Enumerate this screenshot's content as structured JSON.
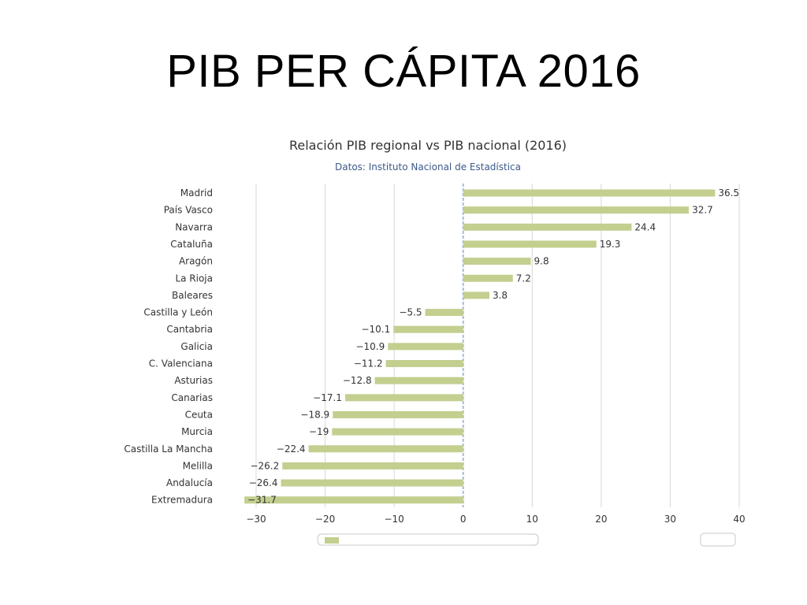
{
  "slide": {
    "title": "PIB PER CÁPITA 2016"
  },
  "colors": {
    "bar": "#c2cf8f",
    "grid": "#d8d8d8",
    "zero_line": "#aabbd9",
    "text": "#333333",
    "subtitle": "#3c5a8a"
  },
  "chart_data": {
    "type": "bar",
    "orientation": "horizontal",
    "title": "Relación PIB regional vs PIB nacional (2016)",
    "subtitle": "Datos: Instituto Nacional de Estadística",
    "categories": [
      "Madrid",
      "País Vasco",
      "Navarra",
      "Cataluña",
      "Aragón",
      "La Rioja",
      "Baleares",
      "Castilla y León",
      "Cantabria",
      "Galicia",
      "C. Valenciana",
      "Asturias",
      "Canarias",
      "Ceuta",
      "Murcia",
      "Castilla La Mancha",
      "Melilla",
      "Andalucía",
      "Extremadura"
    ],
    "values": [
      36.5,
      32.7,
      24.4,
      19.3,
      9.8,
      7.2,
      3.8,
      -5.5,
      -10.1,
      -10.9,
      -11.2,
      -12.8,
      -17.1,
      -18.9,
      -19,
      -22.4,
      -26.2,
      -26.4,
      -31.7
    ],
    "data_labels": [
      "36.5",
      "32.7",
      "24.4",
      "19.3",
      "9.8",
      "7.2",
      "3.8",
      "−5.5",
      "−10.1",
      "−10.9",
      "−11.2",
      "−12.8",
      "−17.1",
      "−18.9",
      "−19",
      "−22.4",
      "−26.2",
      "−26.4",
      "−31.7"
    ],
    "xlim": [
      -30,
      40
    ],
    "xticks": [
      -30,
      -20,
      -10,
      0,
      10,
      20,
      30,
      40
    ],
    "xtick_labels": [
      "−30",
      "−20",
      "−10",
      "0",
      "10",
      "20",
      "30",
      "40"
    ],
    "grid": true
  }
}
